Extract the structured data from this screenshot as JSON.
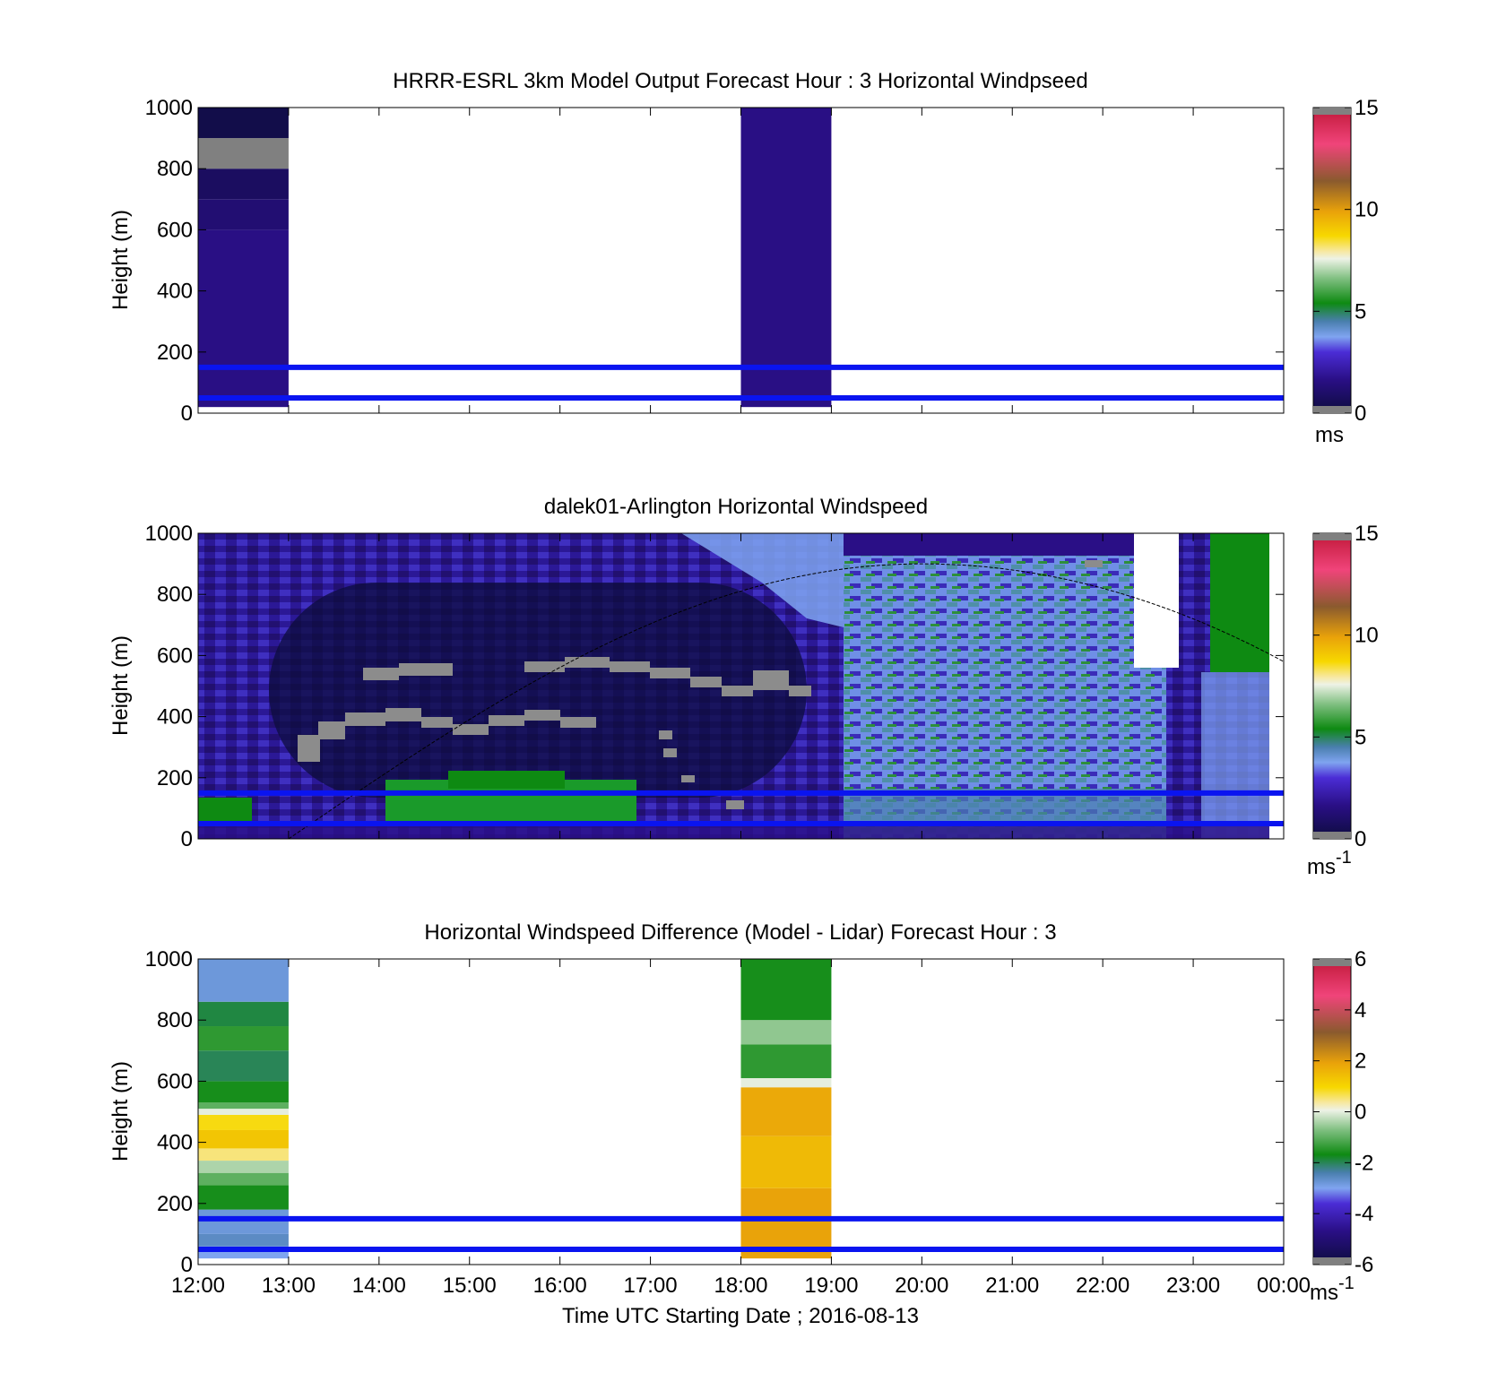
{
  "chart_data": [
    {
      "type": "heatmap",
      "title": "HRRR-ESRL 3km Model Output   Forecast Hour : 3 Horizontal Windpseed",
      "ylabel": "Height (m)",
      "xlabel": "",
      "colorbar_label": "ms",
      "colorbar_label_sup": "",
      "x_range": [
        "12:00",
        "00:00"
      ],
      "ylim": [
        0,
        1000
      ],
      "yticks": [
        "0",
        "200",
        "400",
        "600",
        "800",
        "1000"
      ],
      "clim": [
        0,
        15
      ],
      "cticks": [
        "0",
        "5",
        "10",
        "15"
      ],
      "colormap": "windspeed",
      "reference_lines_m": [
        50,
        150
      ],
      "columns": [
        {
          "start": "12:00",
          "end": "13:00",
          "bands": [
            {
              "y0": 20,
              "y1": 600,
              "value": 1.6
            },
            {
              "y0": 600,
              "y1": 700,
              "value": 1.2
            },
            {
              "y0": 700,
              "y1": 800,
              "value": 0.8
            },
            {
              "y0": 800,
              "y1": 900,
              "value": 0.0,
              "note": "nan"
            },
            {
              "y0": 900,
              "y1": 1000,
              "value": 0.3
            }
          ]
        },
        {
          "start": "18:00",
          "end": "19:00",
          "bands": [
            {
              "y0": 20,
              "y1": 1000,
              "value": 1.6
            }
          ]
        }
      ]
    },
    {
      "type": "heatmap",
      "title": "dalek01-Arlington  Horizontal Windspeed",
      "ylabel": "Height (m)",
      "xlabel": "",
      "colorbar_label": "ms",
      "colorbar_label_sup": "-1",
      "x_range": [
        "12:00",
        "00:00"
      ],
      "ylim": [
        0,
        1000
      ],
      "yticks": [
        "0",
        "200",
        "400",
        "600",
        "800",
        "1000"
      ],
      "clim": [
        0,
        15
      ],
      "cticks": [
        "0",
        "5",
        "10",
        "15"
      ],
      "colormap": "windspeed",
      "reference_lines_m": [
        50,
        150
      ],
      "boundary_curve": {
        "start": "13:00",
        "peak_time": "20:00",
        "peak_m": 900,
        "end_time": "00:00",
        "end_m": 580
      },
      "notes": "Lidar profiles 12:00-23:45; low (1-2 m/s) speeds aloft in the morning, green (5-6 m/s) layer below 200 m before 17:00, grey (missing) patches near 300-550 m, lighter blue/green speeds 20:00-00:00"
    },
    {
      "type": "heatmap",
      "title": "Horizontal Windspeed Difference (Model - Lidar) Forecast Hour : 3",
      "ylabel": "Height (m)",
      "xlabel": "Time UTC  Starting Date ; 2016-08-13",
      "colorbar_label": "ms",
      "colorbar_label_sup": "-1",
      "x_range": [
        "12:00",
        "00:00"
      ],
      "xticks": [
        "12:00",
        "13:00",
        "14:00",
        "15:00",
        "16:00",
        "17:00",
        "18:00",
        "19:00",
        "20:00",
        "21:00",
        "22:00",
        "23:00",
        "00:00"
      ],
      "ylim": [
        0,
        1000
      ],
      "yticks": [
        "0",
        "200",
        "400",
        "600",
        "800",
        "1000"
      ],
      "clim": [
        -6,
        6
      ],
      "cticks": [
        "-6",
        "-4",
        "-2",
        "0",
        "2",
        "4",
        "6"
      ],
      "colormap": "windspeed",
      "reference_lines_m": [
        50,
        150
      ],
      "columns": [
        {
          "start": "12:00",
          "end": "13:00",
          "bands": [
            {
              "y0": 20,
              "y1": 60,
              "value": -3.0
            },
            {
              "y0": 60,
              "y1": 100,
              "value": -2.6
            },
            {
              "y0": 100,
              "y1": 180,
              "value": -2.8
            },
            {
              "y0": 180,
              "y1": 260,
              "value": -1.6
            },
            {
              "y0": 260,
              "y1": 300,
              "value": -1.0
            },
            {
              "y0": 300,
              "y1": 340,
              "value": -0.4
            },
            {
              "y0": 340,
              "y1": 380,
              "value": 0.5
            },
            {
              "y0": 380,
              "y1": 440,
              "value": 1.3
            },
            {
              "y0": 440,
              "y1": 490,
              "value": 0.9
            },
            {
              "y0": 490,
              "y1": 510,
              "value": 0.0
            },
            {
              "y0": 510,
              "y1": 530,
              "value": -1.0
            },
            {
              "y0": 530,
              "y1": 600,
              "value": -1.6
            },
            {
              "y0": 600,
              "y1": 700,
              "value": -2.0
            },
            {
              "y0": 700,
              "y1": 780,
              "value": -1.4
            },
            {
              "y0": 780,
              "y1": 860,
              "value": -1.9
            },
            {
              "y0": 860,
              "y1": 1000,
              "value": -2.8
            }
          ]
        },
        {
          "start": "18:00",
          "end": "19:00",
          "bands": [
            {
              "y0": 20,
              "y1": 250,
              "value": 1.9
            },
            {
              "y0": 250,
              "y1": 420,
              "value": 1.5
            },
            {
              "y0": 420,
              "y1": 580,
              "value": 1.8
            },
            {
              "y0": 580,
              "y1": 610,
              "value": 0.0
            },
            {
              "y0": 610,
              "y1": 720,
              "value": -1.4
            },
            {
              "y0": 720,
              "y1": 800,
              "value": -0.6
            },
            {
              "y0": 800,
              "y1": 1000,
              "value": -1.6
            }
          ]
        }
      ]
    }
  ],
  "colors": {
    "reference_line": "#0a14f0",
    "nan_color": "#808080",
    "colormap_stops": [
      "#808080",
      "#0d0c3d",
      "#2a0f86",
      "#4b2dd6",
      "#7fa4f0",
      "#2d8f3a",
      "#0e8a12",
      "#dfe9d7",
      "#f7d800",
      "#e9a20a",
      "#8a5a2e",
      "#f0447a",
      "#c01838",
      "#808080"
    ]
  }
}
